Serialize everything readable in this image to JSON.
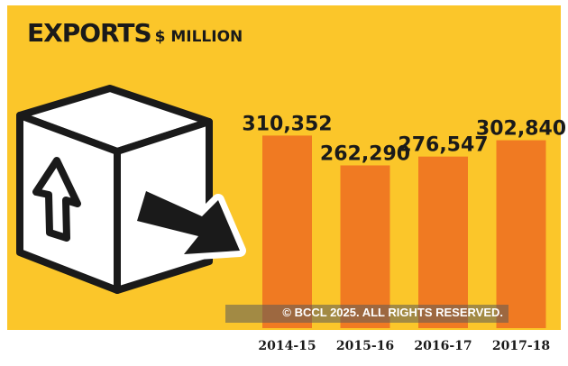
{
  "colors": {
    "background": "#fbc62a",
    "bar": "#f07a22",
    "text": "#1a1a1a"
  },
  "icon": "export-box-icon",
  "watermark": "© BCCL 2025. ALL RIGHTS RESERVED.",
  "chart_data": {
    "type": "bar",
    "title": "EXPORTS",
    "subtitle": "$ MILLION",
    "categories": [
      "2014-15",
      "2015-16",
      "2016-17",
      "2017-18"
    ],
    "values": [
      310352,
      262290,
      276547,
      302840
    ],
    "value_labels": [
      "310,352",
      "262,290",
      "276,547",
      "302,840"
    ],
    "ylim": [
      0,
      340000
    ],
    "grid": false,
    "legend": "none"
  }
}
